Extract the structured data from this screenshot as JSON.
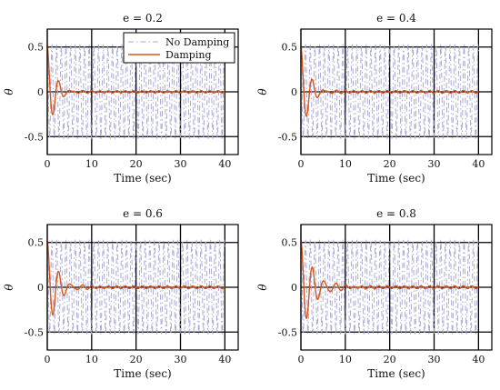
{
  "legend": {
    "items": [
      {
        "label": "No Damping",
        "color": "#a9a9d6",
        "style": "dashdot"
      },
      {
        "label": "Damping",
        "color": "#d95319",
        "style": "solid"
      }
    ],
    "placement": "top-right of first panel"
  },
  "chart_data": [
    {
      "type": "line",
      "title": "e = 0.2",
      "xlabel": "Time (sec)",
      "ylabel": "θ",
      "xlim": [
        0,
        43
      ],
      "ylim": [
        -0.7,
        0.7
      ],
      "xticks": [
        0,
        10,
        20,
        30,
        40
      ],
      "yticks": [
        0.5,
        0,
        -0.5
      ],
      "grid": true,
      "series": [
        {
          "name": "No Damping",
          "amplitude": 0.52,
          "period_sec": 1.05,
          "decay": 0.0
        },
        {
          "name": "Damping",
          "amplitude": 0.52,
          "period_sec": 2.6,
          "decay": 0.6,
          "residual_ripple": 0.012
        }
      ]
    },
    {
      "type": "line",
      "title": "e = 0.4",
      "xlabel": "Time (sec)",
      "ylabel": "θ",
      "xlim": [
        0,
        43
      ],
      "ylim": [
        -0.7,
        0.7
      ],
      "xticks": [
        0,
        10,
        20,
        30,
        40
      ],
      "yticks": [
        0.5,
        0,
        -0.5
      ],
      "grid": true,
      "series": [
        {
          "name": "No Damping",
          "amplitude": 0.52,
          "period_sec": 1.05,
          "decay": 0.0
        },
        {
          "name": "Damping",
          "amplitude": 0.52,
          "period_sec": 2.6,
          "decay": 0.55,
          "residual_ripple": 0.014
        }
      ]
    },
    {
      "type": "line",
      "title": "e = 0.6",
      "xlabel": "Time (sec)",
      "ylabel": "θ",
      "xlim": [
        0,
        43
      ],
      "ylim": [
        -0.7,
        0.7
      ],
      "xticks": [
        0,
        10,
        20,
        30,
        40
      ],
      "yticks": [
        0.5,
        0,
        -0.5
      ],
      "grid": true,
      "series": [
        {
          "name": "No Damping",
          "amplitude": 0.52,
          "period_sec": 1.05,
          "decay": 0.0
        },
        {
          "name": "Damping",
          "amplitude": 0.52,
          "period_sec": 2.6,
          "decay": 0.45,
          "residual_ripple": 0.015
        }
      ]
    },
    {
      "type": "line",
      "title": "e = 0.8",
      "xlabel": "Time (sec)",
      "ylabel": "θ",
      "xlim": [
        0,
        43
      ],
      "ylim": [
        -0.7,
        0.7
      ],
      "xticks": [
        0,
        10,
        20,
        30,
        40
      ],
      "yticks": [
        0.5,
        0,
        -0.5
      ],
      "grid": true,
      "series": [
        {
          "name": "No Damping",
          "amplitude": 0.52,
          "period_sec": 1.05,
          "decay": 0.0
        },
        {
          "name": "Damping",
          "amplitude": 0.52,
          "period_sec": 2.6,
          "decay": 0.35,
          "residual_ripple": 0.016
        }
      ]
    }
  ]
}
